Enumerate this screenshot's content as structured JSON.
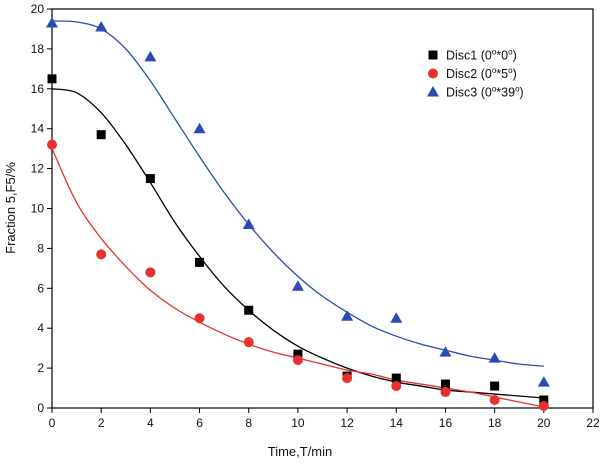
{
  "chart_data": {
    "type": "scatter",
    "title": "",
    "xlabel": "Time,T/min",
    "ylabel": "Fraction 5,F5/%",
    "xlim": [
      0,
      22
    ],
    "ylim": [
      0,
      20
    ],
    "xticks": [
      0,
      2,
      4,
      6,
      8,
      10,
      12,
      14,
      16,
      18,
      20,
      22
    ],
    "yticks": [
      0,
      2,
      4,
      6,
      8,
      10,
      12,
      14,
      16,
      18,
      20
    ],
    "grid": false,
    "legend_position": "top-right",
    "series": [
      {
        "name": "Disc1 (0°*0°)",
        "legend_parts": {
          "pre": "Disc1 (0",
          "s1": "o",
          "mid": "*0",
          "s2": "o",
          "post": ")"
        },
        "marker": "square",
        "color": "#000000",
        "x": [
          0,
          2,
          4,
          6,
          8,
          10,
          12,
          14,
          16,
          18,
          20
        ],
        "y": [
          16.5,
          13.7,
          11.5,
          7.3,
          4.9,
          2.7,
          1.6,
          1.5,
          1.2,
          1.1,
          0.4
        ],
        "fit_line": {
          "color": "#000000",
          "x": [
            0,
            1,
            2,
            3,
            4,
            5,
            6,
            7,
            8,
            9,
            10,
            11,
            12,
            13,
            14,
            15,
            16,
            17,
            18,
            19,
            20
          ],
          "y": [
            16.0,
            15.8,
            14.8,
            13.2,
            11.3,
            9.3,
            7.6,
            6.1,
            4.9,
            3.9,
            3.1,
            2.5,
            2.0,
            1.6,
            1.3,
            1.1,
            0.9,
            0.8,
            0.7,
            0.6,
            0.5
          ]
        }
      },
      {
        "name": "Disc2 (0°*5°)",
        "legend_parts": {
          "pre": "Disc2 (0",
          "s1": "o",
          "mid": "*5",
          "s2": "o",
          "post": ")"
        },
        "marker": "circle",
        "color": "#e8302f",
        "x": [
          0,
          2,
          4,
          6,
          8,
          10,
          12,
          14,
          16,
          18,
          20
        ],
        "y": [
          13.2,
          7.7,
          6.8,
          4.5,
          3.3,
          2.4,
          1.5,
          1.1,
          0.8,
          0.4,
          0.1
        ],
        "fit_line": {
          "color": "#e8302f",
          "x": [
            0,
            1,
            2,
            3,
            4,
            5,
            6,
            7,
            8,
            9,
            10,
            11,
            12,
            13,
            14,
            15,
            16,
            17,
            18,
            19,
            20
          ],
          "y": [
            13.0,
            10.3,
            8.5,
            7.1,
            5.9,
            5.0,
            4.3,
            3.7,
            3.2,
            2.8,
            2.5,
            2.2,
            1.9,
            1.7,
            1.4,
            1.2,
            1.0,
            0.8,
            0.55,
            0.3,
            0.05
          ]
        }
      },
      {
        "name": "Disc3 (0°*39°)",
        "legend_parts": {
          "pre": "Disc3 (0",
          "s1": "o",
          "mid": "*39",
          "s2": "o",
          "post": ")"
        },
        "marker": "triangle",
        "color": "#2a4bb3",
        "x": [
          0,
          2,
          4,
          6,
          8,
          10,
          12,
          14,
          16,
          18,
          20
        ],
        "y": [
          19.3,
          19.1,
          17.6,
          14.0,
          9.2,
          6.1,
          4.6,
          4.5,
          2.8,
          2.5,
          1.3
        ],
        "fit_line": {
          "color": "#2a4bb3",
          "x": [
            0,
            1,
            2,
            3,
            4,
            5,
            6,
            7,
            8,
            9,
            10,
            11,
            12,
            13,
            14,
            15,
            16,
            17,
            18,
            19,
            20
          ],
          "y": [
            19.4,
            19.35,
            19.0,
            18.0,
            16.4,
            14.5,
            12.6,
            10.8,
            9.2,
            7.8,
            6.6,
            5.6,
            4.8,
            4.1,
            3.6,
            3.2,
            2.9,
            2.6,
            2.4,
            2.2,
            2.1
          ]
        }
      }
    ]
  }
}
